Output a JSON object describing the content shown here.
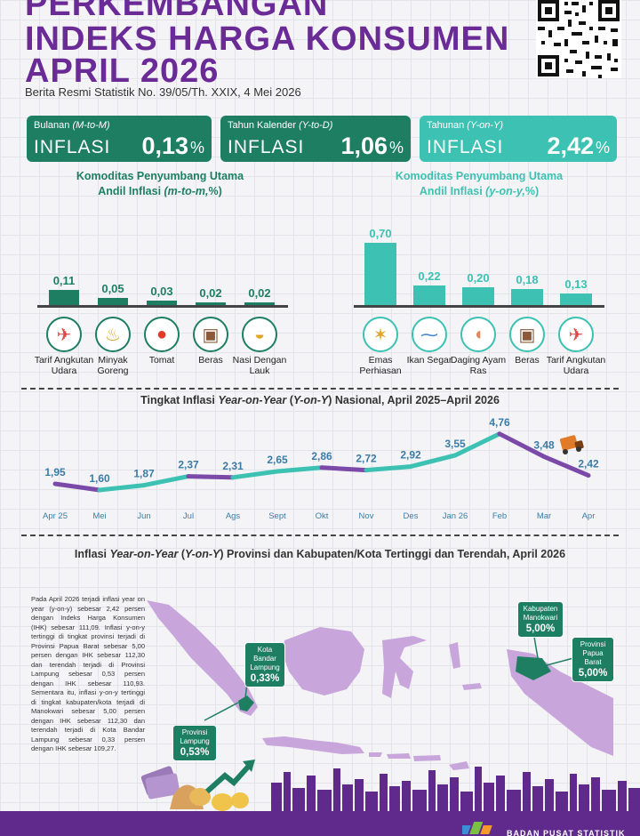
{
  "header": {
    "title_line1": "PERKEMBANGAN",
    "title_line2": "INDEKS HARGA KONSUMEN",
    "title_line3": "APRIL 2026",
    "subtitle": "Berita Resmi Statistik No. 39/05/Th. XXIX, 4 Mei 2026"
  },
  "cards": [
    {
      "label": "Bulanan",
      "label_italic": "(M-to-M)",
      "word": "INFLASI",
      "value": "0,13",
      "unit": "%",
      "color": "#1e7e61"
    },
    {
      "label": "Tahun Kalender",
      "label_italic": "(Y-to-D)",
      "word": "INFLASI",
      "value": "1,06",
      "unit": "%",
      "color": "#1e7e61"
    },
    {
      "label": "Tahunan",
      "label_italic": "(Y-on-Y)",
      "word": "INFLASI",
      "value": "2,42",
      "unit": "%",
      "color": "#3cc1b2"
    }
  ],
  "mtm": {
    "title_line1": "Komoditas Penyumbang Utama",
    "title_line2_prefix": "Andil Inflasi ",
    "title_line2_italic": "(m-to-m,",
    "title_line2_suffix": "%)",
    "color": "#1e7e61"
  },
  "yoy": {
    "title_line1": "Komoditas Penyumbang Utama",
    "title_line2_prefix": "Andil Inflasi ",
    "title_line2_italic": "(y-on-y,",
    "title_line2_suffix": "%)",
    "color": "#3cc1b2"
  },
  "line_chart": {
    "title_prefix": "Tingkat Inflasi ",
    "title_italic1": "Year-on-Year",
    "title_mid": " (",
    "title_italic2": "Y-on-Y",
    "title_suffix": ") Nasional, April 2025–April 2026"
  },
  "map": {
    "title_prefix": "Inflasi ",
    "title_italic1": "Year-on-Year",
    "title_mid": " (",
    "title_italic2": "Y-on-Y",
    "title_suffix": ") Provinsi dan Kabupaten/Kota Tertinggi dan Terendah, April 2026",
    "body": "Pada April 2026 terjadi inflasi year on year (y-on-y) sebesar 2,42 persen dengan Indeks Harga Konsumen (IHK) sebesar 111,09. Inflasi y-on-y tertinggi di tingkat provinsi terjadi di Provinsi Papua Barat sebesar 5,00 persen dengan IHK sebesar 112,30 dan terendah terjadi di Provinsi Lampung sebesar 0,53 persen dengan IHK sebesar 110,93. Sementara itu, inflasi y-on-y tertinggi di tingkat kabupaten/kota terjadi di Manokwari sebesar 5,00 persen dengan IHK sebesar 112,30 dan terendah terjadi di Kota Bandar Lampung sebesar 0,33 persen dengan IHK sebesar 109,27.",
    "callouts": [
      {
        "name": "Provinsi Lampung",
        "value": "0,53%"
      },
      {
        "name": "Kota Bandar Lampung",
        "value": "0,33%"
      },
      {
        "name": "Kabupaten Manokwari",
        "value": "5,00%"
      },
      {
        "name": "Provinsi Papua Barat",
        "value": "5,00%"
      }
    ]
  },
  "footer": {
    "org": "BADAN PUSAT STATISTIK"
  },
  "chart_data": [
    {
      "type": "bar",
      "categories": [
        "Tarif Angkutan Udara",
        "Minyak Goreng",
        "Tomat",
        "Beras",
        "Nasi Dengan Lauk"
      ],
      "values": [
        0.11,
        0.05,
        0.03,
        0.02,
        0.02
      ],
      "value_labels": [
        "0,11",
        "0,05",
        "0,03",
        "0,02",
        "0,02"
      ],
      "icons": [
        "airplane-icon",
        "cooking-oil-icon",
        "tomato-icon",
        "rice-sack-icon",
        "rice-meal-icon"
      ],
      "ylim": [
        0,
        0.7
      ]
    },
    {
      "type": "bar",
      "categories": [
        "Emas Perhiasan",
        "Ikan Segar",
        "Daging Ayam Ras",
        "Beras",
        "Tarif Angkutan Udara"
      ],
      "values": [
        0.7,
        0.22,
        0.2,
        0.18,
        0.13
      ],
      "value_labels": [
        "0,70",
        "0,22",
        "0,20",
        "0,18",
        "0,13"
      ],
      "icons": [
        "gold-jewelry-icon",
        "fish-icon",
        "chicken-meat-icon",
        "rice-sack-icon",
        "airplane-icon"
      ],
      "ylim": [
        0,
        0.7
      ]
    },
    {
      "type": "line",
      "x": [
        "Apr 25",
        "Mei",
        "Jun",
        "Jul",
        "Ags",
        "Sept",
        "Okt",
        "Nov",
        "Des",
        "Jan 26",
        "Feb",
        "Mar",
        "Apr"
      ],
      "values": [
        1.95,
        1.6,
        1.87,
        2.37,
        2.31,
        2.65,
        2.86,
        2.72,
        2.92,
        3.55,
        4.76,
        3.48,
        2.42
      ],
      "value_labels": [
        "1,95",
        "1,60",
        "1,87",
        "2,37",
        "2,31",
        "2,65",
        "2,86",
        "2,72",
        "2,92",
        "3,55",
        "4,76",
        "3,48",
        "2,42"
      ],
      "ylim": [
        1.4,
        4.9
      ],
      "rising_color": "#3cc1b2",
      "falling_color": "#7b4aa8"
    }
  ]
}
